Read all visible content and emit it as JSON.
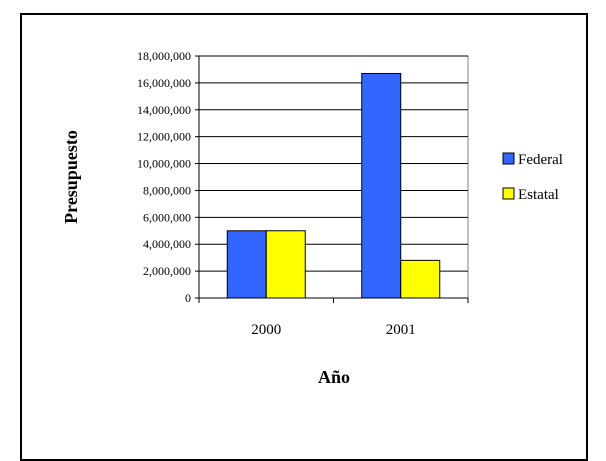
{
  "chart_data": {
    "type": "bar",
    "title": "",
    "xlabel": "Año",
    "ylabel": "Presupuesto",
    "categories": [
      "2000",
      "2001"
    ],
    "series": [
      {
        "name": "Federal",
        "values": [
          5000000,
          16700000
        ],
        "color": "#3366FF"
      },
      {
        "name": "Estatal",
        "values": [
          5000000,
          2800000
        ],
        "color": "#FFFF00"
      }
    ],
    "ylim": [
      0,
      18000000
    ],
    "yticks": [
      0,
      2000000,
      4000000,
      6000000,
      8000000,
      10000000,
      12000000,
      14000000,
      16000000,
      18000000
    ],
    "ytick_labels": [
      "0",
      "2,000,000",
      "4,000,000",
      "6,000,000",
      "8,000,000",
      "10,000,000",
      "12,000,000",
      "14,000,000",
      "16,000,000",
      "18,000,000"
    ],
    "grid": true,
    "legend": "right"
  }
}
